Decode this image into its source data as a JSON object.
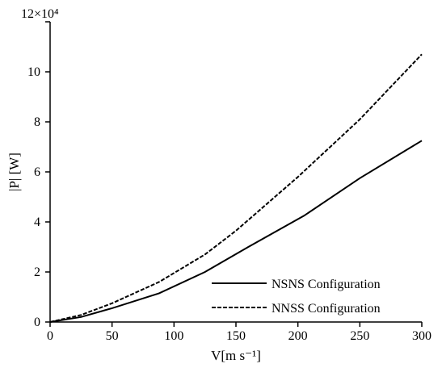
{
  "chart_data": {
    "type": "line",
    "title": "",
    "xlabel": "V[m s⁻¹]",
    "ylabel": "|P| [W]",
    "xlim": [
      0,
      300
    ],
    "ylim": [
      0,
      120000
    ],
    "x_ticks": [
      "0",
      "50",
      "100",
      "150",
      "200",
      "250",
      "300"
    ],
    "y_ticks": [
      "0",
      "2",
      "4",
      "6",
      "8",
      "10"
    ],
    "y_top_tick": "12×10⁴",
    "grid": false,
    "legend_position": "bottom-right",
    "series": [
      {
        "name": "NSNS Configuration",
        "style": "solid",
        "color": "#000000",
        "x": [
          0,
          25,
          50,
          88,
          125,
          160,
          205,
          250,
          300
        ],
        "y": [
          0,
          2000,
          5500,
          11500,
          20000,
          30000,
          42500,
          57500,
          72500
        ]
      },
      {
        "name": "NNSS Configuration",
        "style": "dashed",
        "color": "#000000",
        "x": [
          0,
          25,
          50,
          88,
          125,
          150,
          200,
          250,
          300
        ],
        "y": [
          0,
          2800,
          7500,
          16000,
          27000,
          36500,
          58000,
          81000,
          107000
        ]
      }
    ]
  }
}
